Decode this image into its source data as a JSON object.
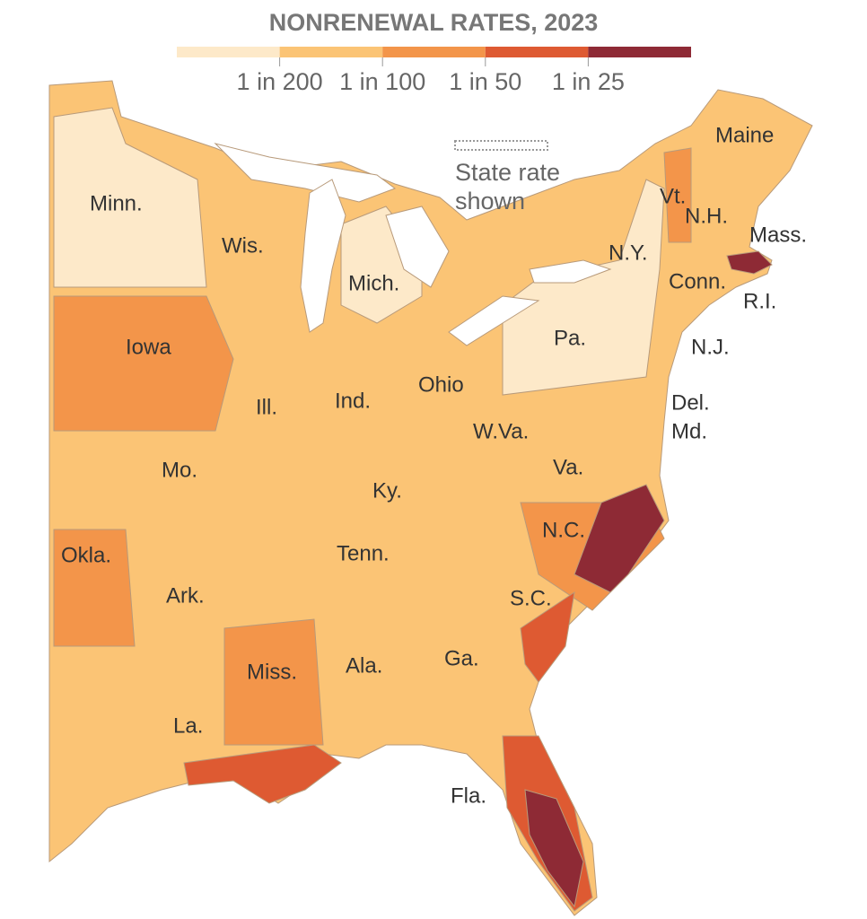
{
  "title": "NONRENEWAL RATES, 2023",
  "legend": {
    "colors": [
      "#fde9c9",
      "#fbc475",
      "#f3954a",
      "#de5a32",
      "#8e2a35"
    ],
    "labels": [
      "1 in 200",
      "1 in 100",
      "1 in 50",
      "1 in 25"
    ]
  },
  "pattern_note": "State rate shown",
  "states": [
    "Minn.",
    "Wis.",
    "Mich.",
    "Iowa",
    "Ill.",
    "Ind.",
    "Ohio",
    "Mo.",
    "Ky.",
    "W.Va.",
    "Va.",
    "N.C.",
    "Tenn.",
    "Okla.",
    "Ark.",
    "S.C.",
    "Miss.",
    "Ala.",
    "Ga.",
    "La.",
    "Fla.",
    "Pa.",
    "N.Y.",
    "Vt.",
    "N.H.",
    "Maine",
    "Mass.",
    "Conn.",
    "R.I.",
    "N.J.",
    "Del.",
    "Md."
  ]
}
